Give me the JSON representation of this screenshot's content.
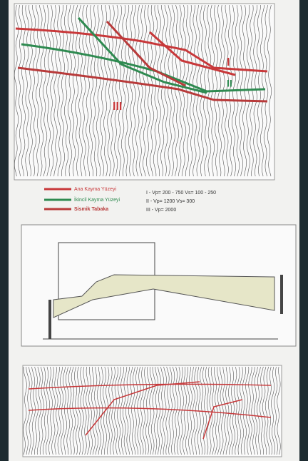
{
  "figure_1": {
    "zone_labels": [
      "I",
      "II",
      "III"
    ]
  },
  "legend": {
    "items": [
      "Ana Kayma Yüzeyi",
      "İkincil Kayma Yüzeyi",
      "Sismik Tabaka"
    ]
  },
  "velocities": [
    "I - Vp= 200 - 750  Vs= 100 - 250",
    "II - Vp= 1200  Vs= 300",
    "III - Vp= 2000"
  ]
}
